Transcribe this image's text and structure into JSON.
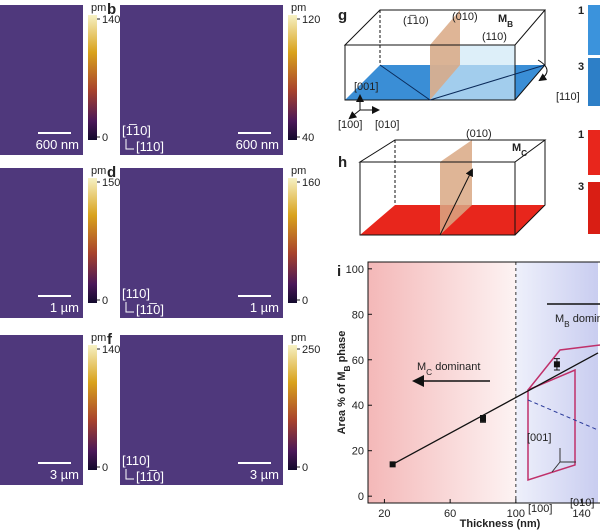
{
  "afm": [
    {
      "unit": "pm",
      "cbar_ticks": [
        140,
        0
      ],
      "scale_bar": "600 nm"
    },
    {
      "label": "b",
      "unit": "pm",
      "cbar_ticks": [
        120,
        40
      ],
      "scale_bar": "600 nm",
      "dirs": [
        "[1̅10]",
        "[110]"
      ]
    },
    {
      "unit": "pm",
      "cbar_ticks": [
        150,
        0
      ],
      "scale_bar": "1 µm"
    },
    {
      "label": "d",
      "unit": "pm",
      "cbar_ticks": [
        160,
        0
      ],
      "scale_bar": "1 µm",
      "dirs": [
        "[110]",
        "[11̅0]"
      ]
    },
    {
      "unit": "pm",
      "cbar_ticks": [
        140,
        0
      ],
      "scale_bar": "3 µm"
    },
    {
      "label": "f",
      "unit": "pm",
      "cbar_ticks": [
        250,
        0
      ],
      "scale_bar": "3 µm",
      "dirs": [
        "[110]",
        "[11̅0]"
      ]
    }
  ],
  "diagram_g": {
    "label": "g",
    "planes": [
      "(1̅10)",
      "(010)",
      "(110)"
    ],
    "phase": "M",
    "phase_sub": "B",
    "axes": [
      "[001]",
      "[100]",
      "[010]"
    ],
    "side_axis": "[110]",
    "side_nums": [
      "1",
      "3"
    ]
  },
  "diagram_h": {
    "label": "h",
    "plane": "(010)",
    "phase": "M",
    "phase_sub": "C",
    "side_nums": [
      "1",
      "3"
    ]
  },
  "chart_data": {
    "type": "line",
    "label": "i",
    "xlabel": "Thickness (nm)",
    "ylabel": [
      "Area % of M",
      "B",
      " phase"
    ],
    "xlim": [
      10,
      150
    ],
    "ylim": [
      -3,
      103
    ],
    "xticks": [
      20,
      60,
      100,
      140
    ],
    "yticks": [
      0,
      20,
      40,
      60,
      80,
      100
    ],
    "boundary": 100,
    "x": [
      25,
      80,
      125
    ],
    "values": [
      14,
      34,
      58
    ],
    "errors": [
      null,
      1.5,
      2.5
    ],
    "fit": {
      "x": [
        25,
        150
      ],
      "values": [
        14,
        63
      ]
    },
    "left_note": [
      "M",
      "C",
      " dominant"
    ],
    "right_note": [
      "M",
      "B",
      " dominant"
    ],
    "inset_axes": [
      "[001]",
      "[100]",
      "[010]"
    ]
  }
}
